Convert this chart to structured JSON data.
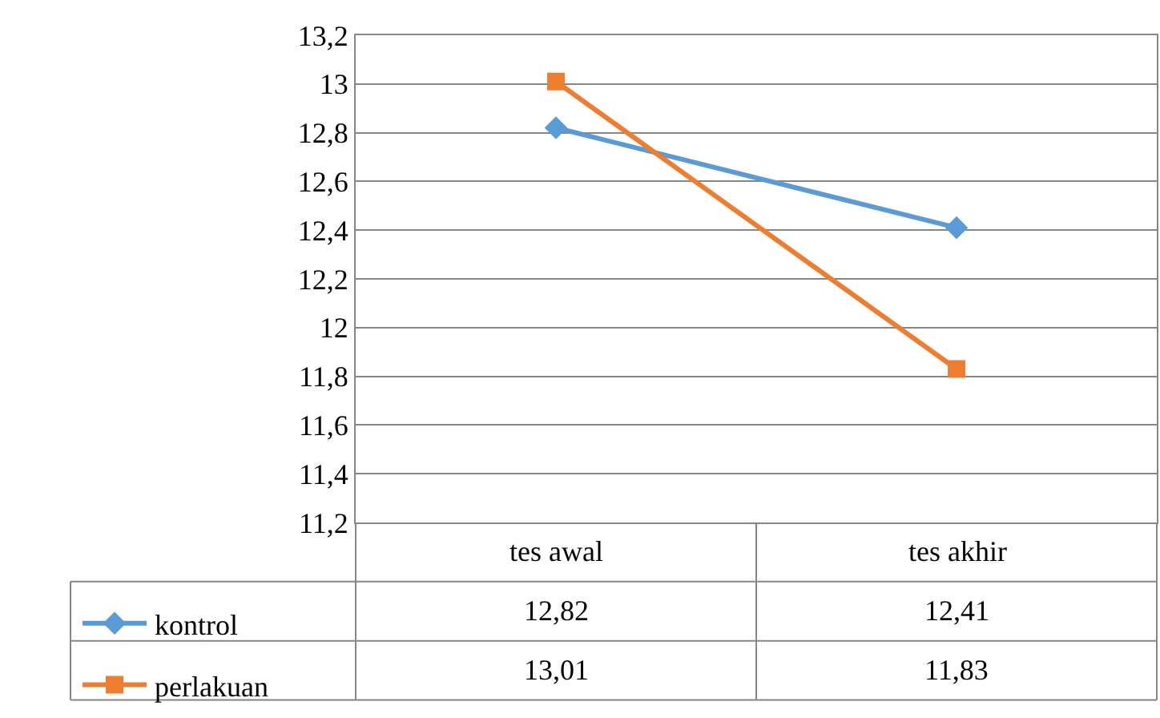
{
  "chart_data": {
    "type": "line",
    "categories": [
      "tes awal",
      "tes akhir"
    ],
    "series": [
      {
        "name": "kontrol",
        "color": "#5b9bd5",
        "marker": "diamond",
        "values": [
          12.82,
          12.41
        ],
        "value_labels": [
          "12,82",
          "12,41"
        ]
      },
      {
        "name": "perlakuan",
        "color": "#ed7d31",
        "marker": "square",
        "values": [
          13.01,
          11.83
        ],
        "value_labels": [
          "13,01",
          "11,83"
        ]
      }
    ],
    "ylim": [
      11.2,
      13.2
    ],
    "yticks": [
      {
        "value": 11.2,
        "label": "11,2"
      },
      {
        "value": 11.4,
        "label": "11,4"
      },
      {
        "value": 11.6,
        "label": "11,6"
      },
      {
        "value": 11.8,
        "label": "11,8"
      },
      {
        "value": 12,
        "label": "12"
      },
      {
        "value": 12.2,
        "label": "12,2"
      },
      {
        "value": 12.4,
        "label": "12,4"
      },
      {
        "value": 12.6,
        "label": "12,6"
      },
      {
        "value": 12.8,
        "label": "12,8"
      },
      {
        "value": 13,
        "label": "13"
      },
      {
        "value": 13.2,
        "label": "13,2"
      }
    ],
    "grid": "y",
    "legend": "bottom left",
    "line_style": "solid"
  }
}
